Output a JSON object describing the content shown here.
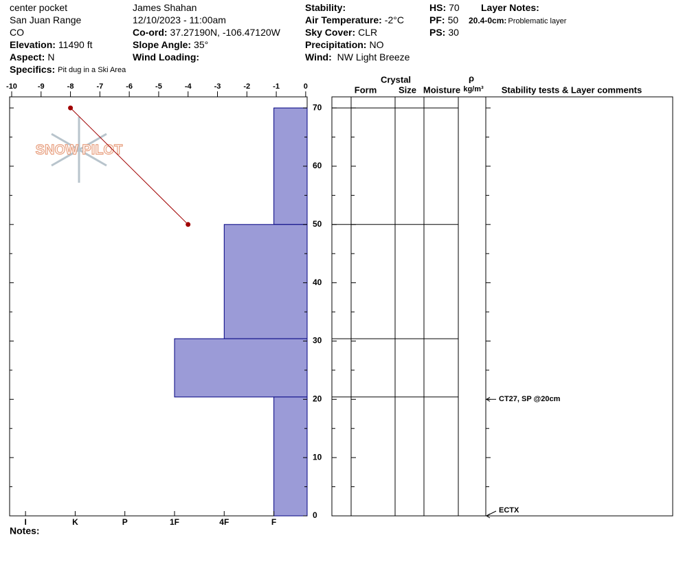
{
  "header": {
    "columns": [
      [
        {
          "value": "center pocket"
        },
        {
          "value": "San Juan Range"
        },
        {
          "value": "CO"
        },
        {
          "label": "Elevation:",
          "value": "11490 ft"
        },
        {
          "label": "Aspect:",
          "value": "N"
        },
        {
          "label": "Specifics:",
          "value": "Pit dug in a Ski Area"
        }
      ],
      [
        {
          "value": "James  Shahan"
        },
        {
          "value": "12/10/2023 - 11:00am"
        },
        {
          "label": "Co-ord:",
          "value": "37.27190N, -106.47120W"
        },
        {
          "label": "Slope Angle:",
          "value": "35°"
        },
        {
          "label": "Wind Loading:"
        }
      ],
      [
        {
          "label": "Stability:"
        },
        {
          "label": "Air Temperature:",
          "value": "-2°C"
        },
        {
          "label": "Sky Cover:",
          "value": "CLR"
        },
        {
          "label": "Precipitation:",
          "value": "NO"
        },
        {
          "label": "Wind:",
          "value": " NW Light Breeze"
        }
      ],
      [
        {
          "label": "HS:",
          "value": "70"
        },
        {
          "label": "PF:",
          "value": "50"
        },
        {
          "label": "PS:",
          "value": "30"
        }
      ],
      [
        {
          "label": "Layer Notes:"
        },
        {
          "label": "20.4-0cm:",
          "value": "Problematic layer"
        }
      ]
    ],
    "notes_label": "Notes:",
    "logo": "SNOW PILOT"
  },
  "chart_data": {
    "type": "bar",
    "ylim": [
      0,
      71.9
    ],
    "yticks": [
      0,
      10,
      20,
      30,
      40,
      50,
      60,
      70
    ],
    "minor_yticks": [
      5,
      15,
      25,
      35,
      45,
      55,
      65
    ],
    "xlim": [
      6.32,
      0.33
    ],
    "xticks": [
      {
        "value": 6,
        "label": "I"
      },
      {
        "value": 5,
        "label": "K"
      },
      {
        "value": 4,
        "label": "P"
      },
      {
        "value": 3,
        "label": "1F"
      },
      {
        "value": 2,
        "label": "4F"
      },
      {
        "value": 1,
        "label": "F"
      }
    ],
    "x2lim": [
      -10.07,
      0.05
    ],
    "x2ticks": [
      -10,
      -9,
      -8,
      -7,
      -6,
      -5,
      -4,
      -3,
      -2,
      -1,
      0
    ],
    "color": "#9b9bd7",
    "edge_color": "#000080",
    "layers": [
      {
        "top": 70,
        "bottom": 50,
        "hardness": 1
      },
      {
        "top": 50,
        "bottom": 30.4,
        "hardness": 2
      },
      {
        "top": 30.4,
        "bottom": 20.4,
        "hardness": 3
      },
      {
        "top": 20.4,
        "bottom": 0,
        "hardness": 1
      }
    ],
    "temperature": {
      "depths": [
        70,
        50
      ],
      "values": [
        -8,
        -4
      ],
      "color": "#a00000"
    },
    "columns": {
      "crystal": "Crystal",
      "form": "Form",
      "size": "Size",
      "moisture": "Moisture",
      "density_symbol": "ρ",
      "density_unit": "kg/m³",
      "comments": "Stability tests & Layer comments"
    },
    "tests": [
      {
        "label": "CT27, SP @20cm",
        "depth": 20
      },
      {
        "label": "ECTX",
        "depth": 0
      }
    ]
  }
}
